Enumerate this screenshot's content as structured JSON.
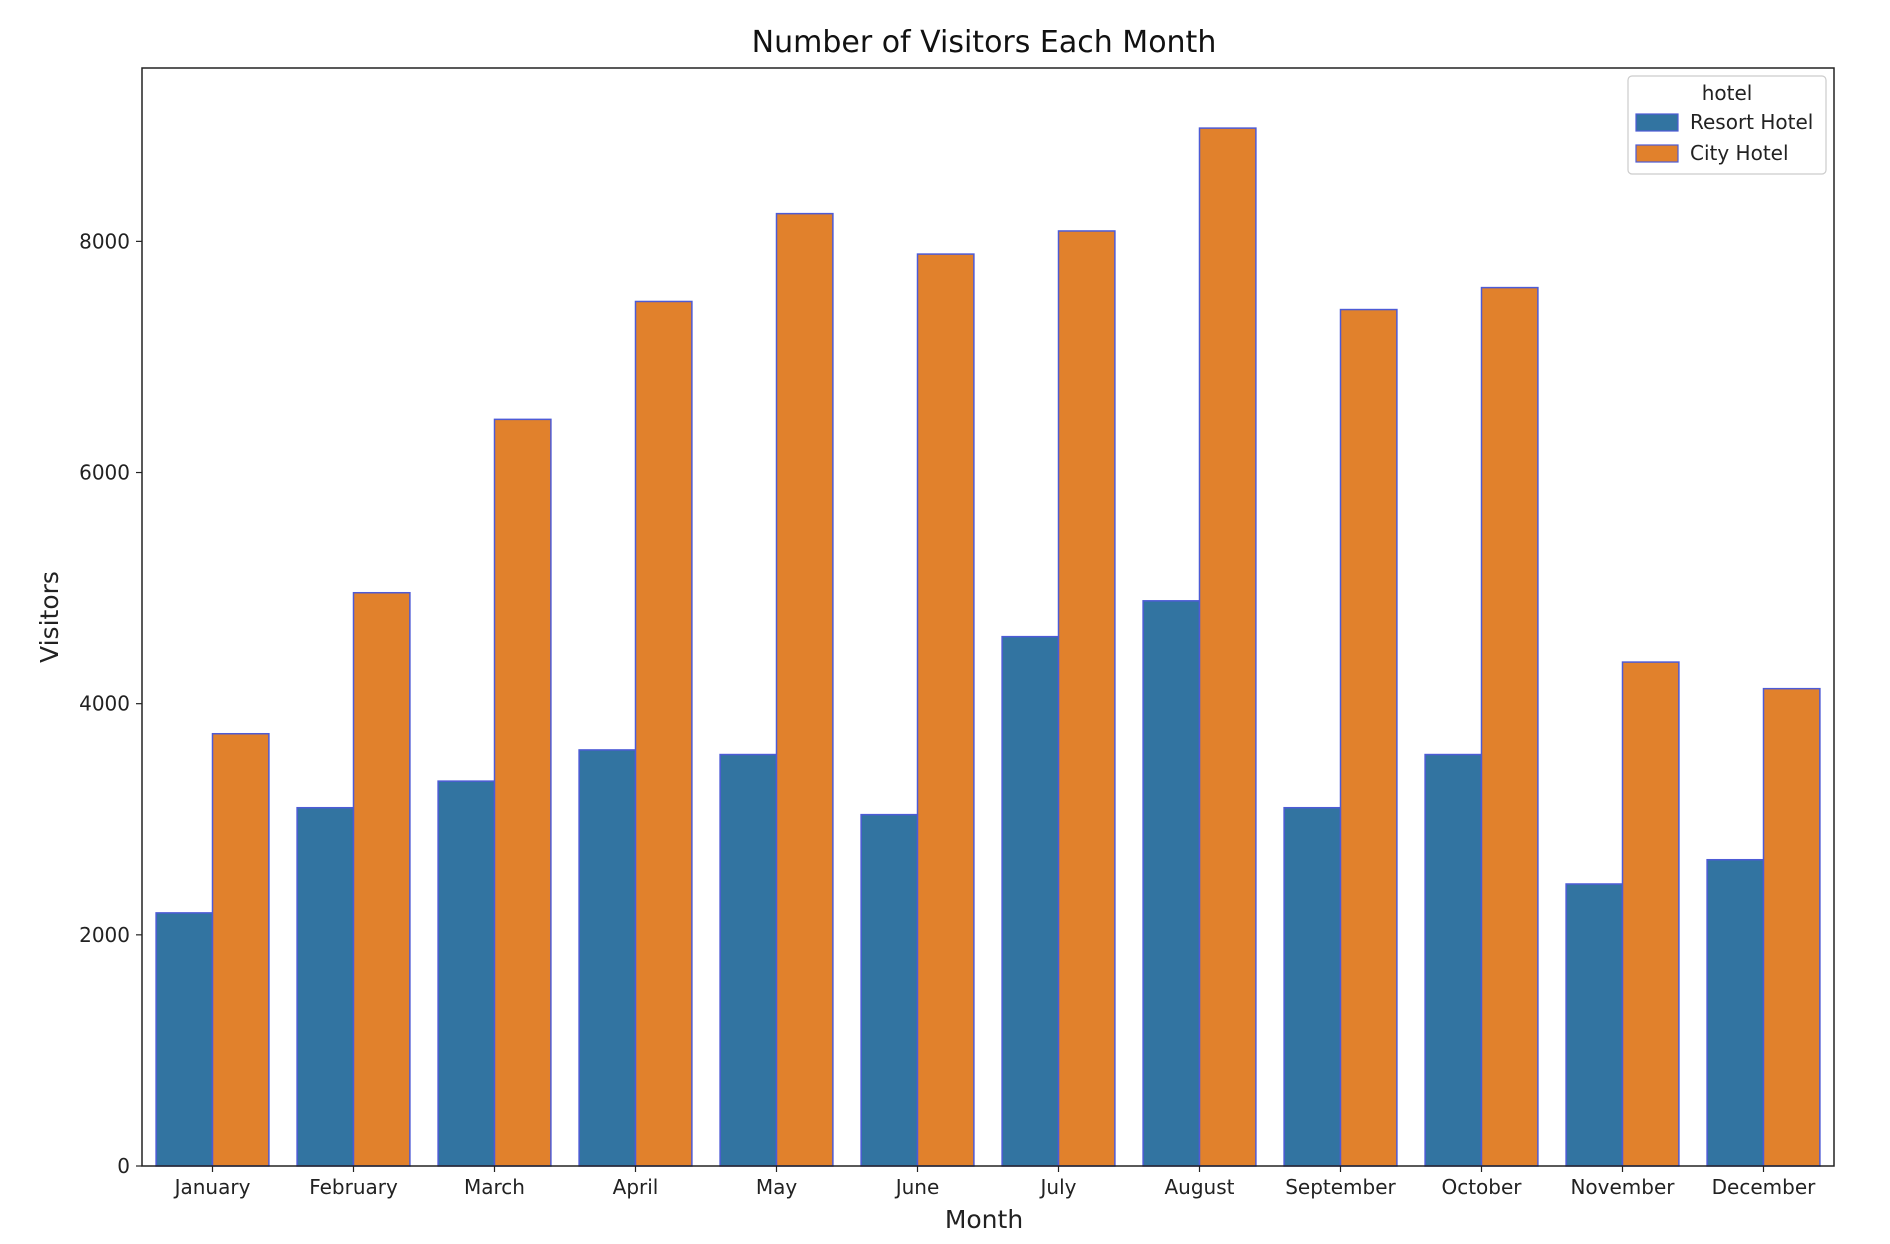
{
  "chart_data": {
    "type": "bar",
    "title": "Number of Visitors Each Month",
    "xlabel": "Month",
    "ylabel": "Visitors",
    "ylim": [
      0,
      9500
    ],
    "yticks": [
      0,
      2000,
      4000,
      6000,
      8000
    ],
    "categories": [
      "January",
      "February",
      "March",
      "April",
      "May",
      "June",
      "July",
      "August",
      "September",
      "October",
      "November",
      "December"
    ],
    "legend": {
      "title": "hotel",
      "placement": "top-right"
    },
    "grid": false,
    "series": [
      {
        "name": "Resort Hotel",
        "color": "#3274a1",
        "values": [
          2190,
          3100,
          3330,
          3600,
          3560,
          3040,
          4580,
          4890,
          3100,
          3560,
          2440,
          2650
        ]
      },
      {
        "name": "City Hotel",
        "color": "#e1812c",
        "values": [
          3740,
          4960,
          6460,
          7480,
          8240,
          7890,
          8090,
          8980,
          7410,
          7600,
          4360,
          4130
        ]
      }
    ],
    "bar_edge_color": "#4d5bd6"
  }
}
